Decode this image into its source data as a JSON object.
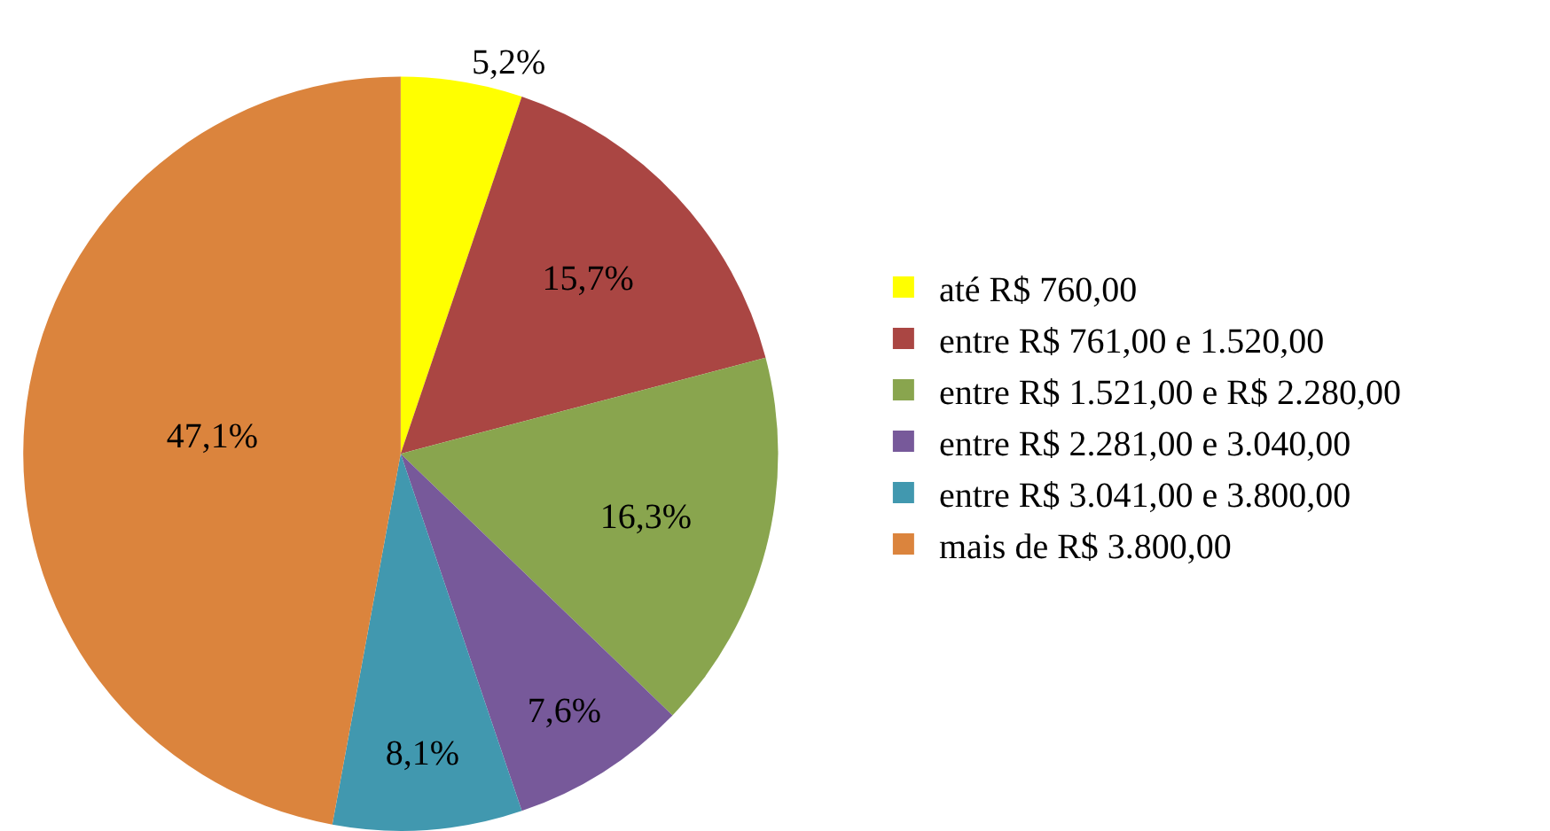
{
  "chart_data": {
    "type": "pie",
    "categories": [
      "até R$ 760,00",
      "entre R$ 761,00 e 1.520,00",
      "entre R$ 1.521,00 e R$ 2.280,00",
      "entre R$ 2.281,00 e 3.040,00",
      "entre R$ 3.041,00 e 3.800,00",
      "mais de R$ 3.800,00"
    ],
    "values": [
      5.2,
      15.7,
      16.3,
      7.6,
      8.1,
      47.1
    ],
    "value_labels": [
      "5,2%",
      "15,7%",
      "16,3%",
      "7,6%",
      "8,1%",
      "47,1%"
    ],
    "colors": [
      "#ffff00",
      "#aa4643",
      "#89a54e",
      "#77599a",
      "#4198af",
      "#db843d"
    ],
    "legend": "right"
  }
}
